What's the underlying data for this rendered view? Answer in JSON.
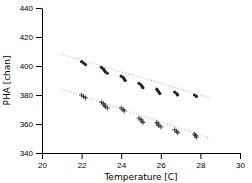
{
  "chart_data": {
    "type": "scatter",
    "xlabel": "Temperature [C]",
    "ylabel": "PHA [chan]",
    "xlim": [
      20,
      30
    ],
    "ylim": [
      340,
      440
    ],
    "xticks": [
      20,
      22,
      24,
      26,
      28,
      30
    ],
    "yticks": [
      340,
      360,
      380,
      400,
      420,
      440
    ],
    "series": [
      {
        "type": "line",
        "line_style": "dotted",
        "color": "#bbbbbb",
        "x": [
          21.0,
          28.5
        ],
        "values": [
          408,
          378
        ]
      },
      {
        "type": "line",
        "line_style": "dotted",
        "color": "#bbbbbb",
        "x": [
          21.0,
          28.5
        ],
        "values": [
          384,
          350
        ]
      },
      {
        "type": "scatter",
        "marker": "o",
        "color": "#222222",
        "x": [
          22.0,
          22.1,
          22.2,
          23.0,
          23.1,
          23.15,
          23.2,
          23.3,
          24.0,
          24.1,
          24.15,
          24.2,
          24.9,
          25.0,
          25.05,
          25.1,
          25.8,
          25.85,
          25.9,
          25.95,
          26.7,
          26.8,
          26.85,
          27.7,
          27.8
        ],
        "values": [
          403,
          402,
          401,
          399,
          398,
          397,
          396,
          395,
          393,
          392,
          391,
          390,
          388,
          387,
          386,
          385,
          384,
          383,
          382,
          381,
          382,
          381,
          380,
          380,
          379
        ]
      },
      {
        "type": "scatter",
        "marker": "+",
        "color": "#333333",
        "x": [
          22.0,
          22.1,
          22.2,
          23.0,
          23.1,
          23.15,
          23.2,
          23.3,
          24.0,
          24.1,
          24.15,
          24.9,
          25.0,
          25.05,
          25.1,
          25.8,
          25.85,
          25.9,
          26.0,
          26.7,
          26.8,
          26.85,
          27.7,
          27.75,
          27.8
        ],
        "values": [
          380,
          379,
          378,
          375,
          374,
          373,
          372,
          371,
          371,
          370,
          369,
          364,
          363,
          362,
          361,
          361,
          360,
          359,
          358,
          356,
          355,
          354,
          353,
          352,
          351
        ]
      }
    ]
  }
}
